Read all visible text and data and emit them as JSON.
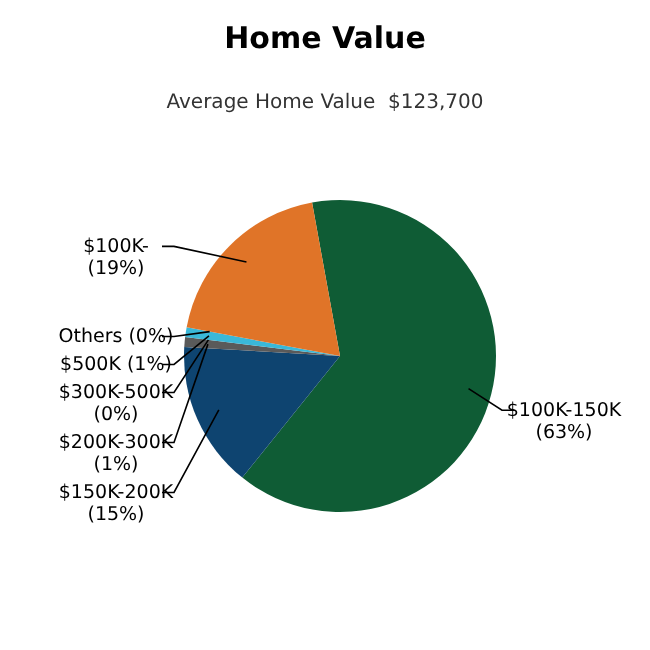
{
  "chart_data": {
    "type": "pie",
    "title": "Home Value",
    "subtitle": "Average Home Value  $123,700",
    "categories": [
      "$100K-150K",
      "$150K-200K",
      "$200K-300K",
      "$300K-500K",
      "$500K",
      "Others",
      "$100K-"
    ],
    "values": [
      63,
      15,
      1,
      0,
      1,
      0,
      19
    ],
    "colors": [
      "#0f5c35",
      "#0e4470",
      "#5a5a5a",
      "#9a9a9a",
      "#3ab8d8",
      "#d0d0d0",
      "#e07428"
    ],
    "value_labels": [
      "(63%)",
      "(15%)",
      "(1%)",
      "(0%)",
      "(1%)",
      "(0%)",
      "(19%)"
    ]
  }
}
